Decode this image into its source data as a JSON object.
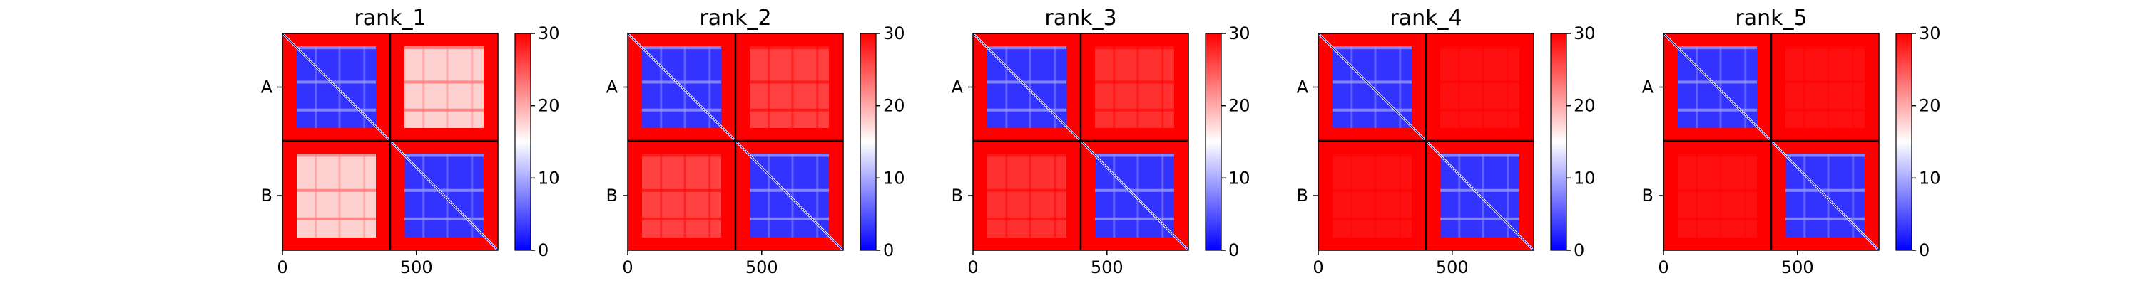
{
  "chart_data": {
    "type": "heatmap",
    "colormap": {
      "name": "bwr",
      "low": "#0000ff",
      "mid": "#ffffff",
      "high": "#ff0000",
      "vmin": 0,
      "vmax": 30
    },
    "xlim": [
      0,
      804
    ],
    "x_ticks": [
      0,
      500
    ],
    "chain_boundary": 402,
    "row_labels": [
      "A",
      "B"
    ],
    "colorbar_ticks": [
      0,
      10,
      20,
      30
    ],
    "panels": [
      {
        "title": "rank_1",
        "offdiag_level": 17
      },
      {
        "title": "rank_2",
        "offdiag_level": 26
      },
      {
        "title": "rank_3",
        "offdiag_level": 27
      },
      {
        "title": "rank_4",
        "offdiag_level": 29
      },
      {
        "title": "rank_5",
        "offdiag_level": 29
      }
    ]
  }
}
